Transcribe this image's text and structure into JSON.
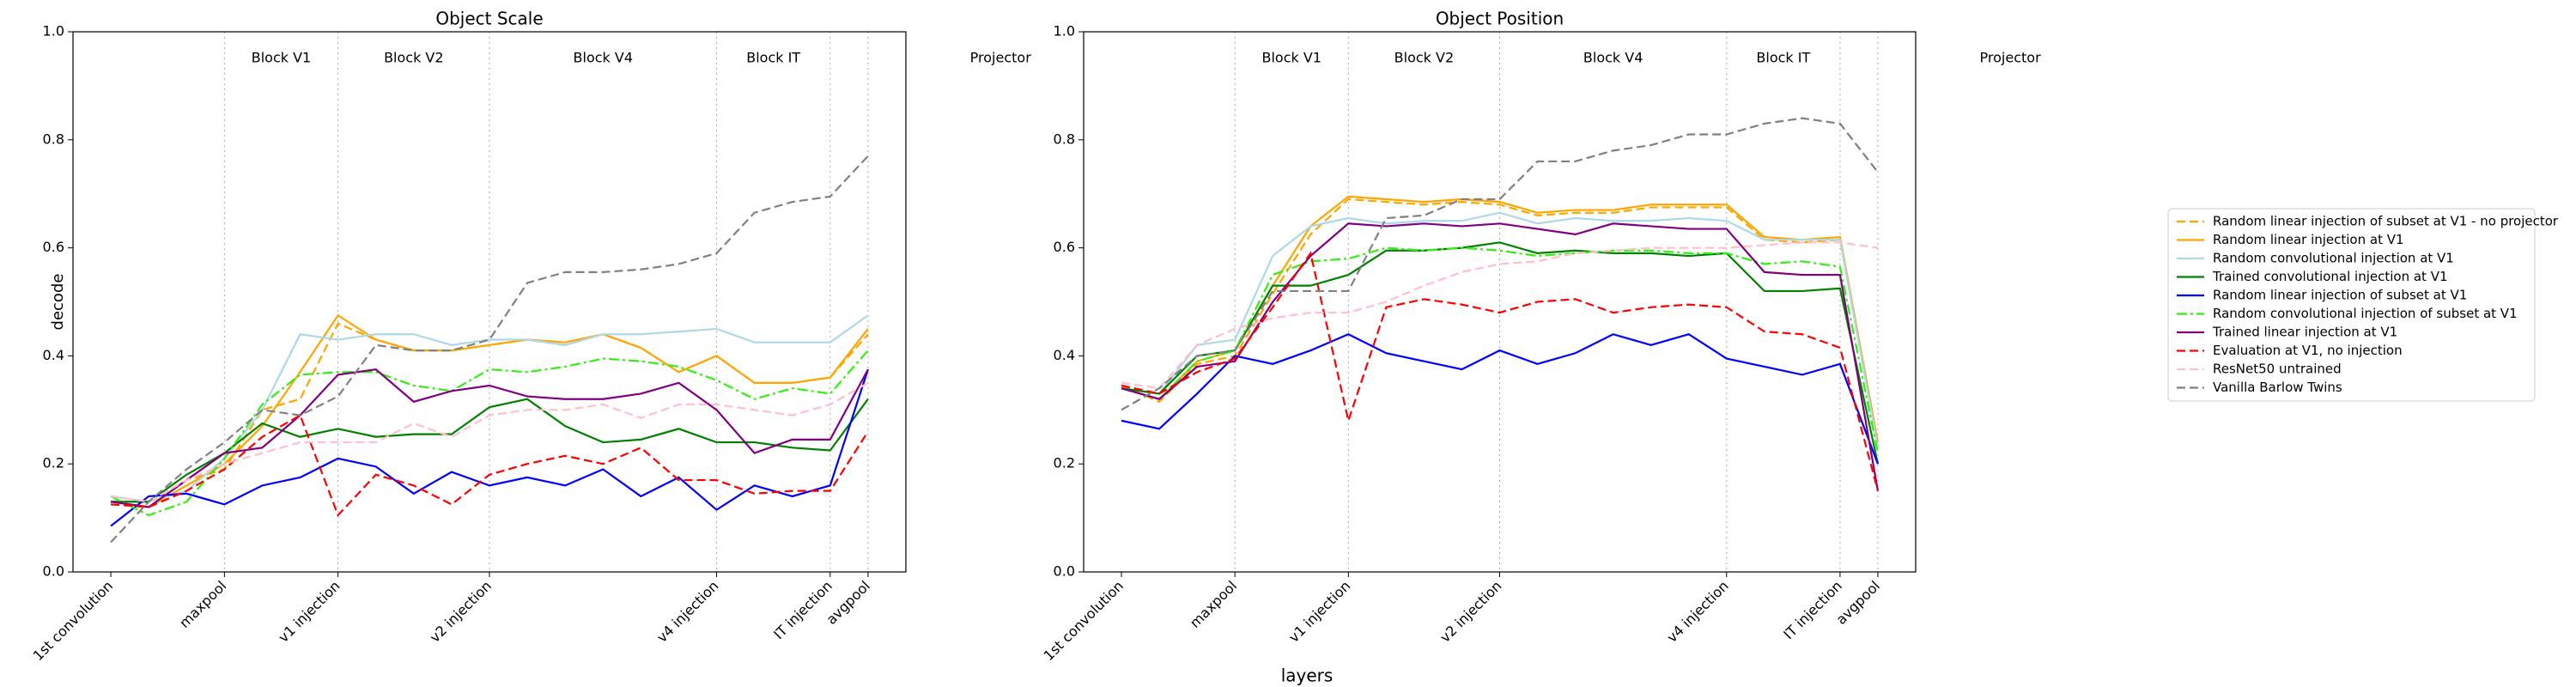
{
  "xlabel": "layers",
  "legend_loc": "center right",
  "chart_data": [
    {
      "type": "line",
      "title": "Object Scale",
      "ylabel": "decode",
      "categories": [
        "1st convolution",
        null,
        null,
        "maxpool",
        null,
        null,
        "v1 injection",
        null,
        null,
        null,
        "v2 injection",
        null,
        null,
        null,
        null,
        null,
        "v4 injection",
        null,
        null,
        "IT injection",
        "avgpool"
      ],
      "blocks": [
        "Block V1",
        "Block V2",
        "Block V4",
        "Block IT",
        "Projector"
      ],
      "ylim": [
        0,
        1
      ],
      "yticks": [
        {
          "value": 0,
          "label": "0.0"
        },
        0.2,
        0.4,
        0.6,
        0.8,
        {
          "value": 1,
          "label": "1.0"
        }
      ],
      "grid": false,
      "block_lines": true,
      "series": [
        {
          "name": "Random linear injection of subset at V1 - no projector",
          "color": "#ffa500",
          "dash": "dashed",
          "values": [
            0.13,
            0.13,
            0.17,
            0.19,
            0.3,
            0.32,
            0.46,
            0.43,
            0.41,
            0.41,
            0.42,
            0.43,
            0.42,
            0.44,
            0.415,
            0.37,
            0.4,
            0.35,
            0.35,
            0.36,
            0.44
          ]
        },
        {
          "name": "Random linear injection at V1",
          "color": "#ffa500",
          "dash": "solid",
          "values": [
            0.13,
            0.12,
            0.16,
            0.2,
            0.27,
            0.37,
            0.475,
            0.43,
            0.41,
            0.41,
            0.42,
            0.43,
            0.425,
            0.44,
            0.415,
            0.37,
            0.4,
            0.35,
            0.35,
            0.36,
            0.45
          ]
        },
        {
          "name": "Random convolutional injection at V1",
          "color": "#add8e6",
          "dash": "solid",
          "values": [
            0.14,
            0.13,
            0.15,
            0.21,
            0.3,
            0.44,
            0.43,
            0.44,
            0.44,
            0.42,
            0.43,
            0.43,
            0.42,
            0.44,
            0.44,
            0.445,
            0.45,
            0.425,
            0.425,
            0.425,
            0.475
          ]
        },
        {
          "name": "Trained convolutional injection at V1",
          "color": "#008000",
          "dash": "solid",
          "values": [
            0.13,
            0.13,
            0.18,
            0.22,
            0.275,
            0.25,
            0.265,
            0.25,
            0.255,
            0.255,
            0.305,
            0.32,
            0.27,
            0.24,
            0.245,
            0.265,
            0.24,
            0.24,
            0.23,
            0.225,
            0.32
          ]
        },
        {
          "name": "Random linear injection of subset at V1",
          "color": "#0000ff",
          "dash": "solid",
          "values": [
            0.085,
            0.14,
            0.145,
            0.125,
            0.16,
            0.175,
            0.21,
            0.195,
            0.145,
            0.185,
            0.16,
            0.175,
            0.16,
            0.19,
            0.14,
            0.175,
            0.115,
            0.16,
            0.14,
            0.16,
            0.375
          ]
        },
        {
          "name": "Random convolutional injection of subset at V1",
          "color": "#33ee11",
          "dash": "dashdot",
          "values": [
            0.14,
            0.105,
            0.13,
            0.21,
            0.31,
            0.365,
            0.37,
            0.37,
            0.345,
            0.335,
            0.375,
            0.37,
            0.38,
            0.395,
            0.39,
            0.38,
            0.355,
            0.32,
            0.34,
            0.33,
            0.41
          ]
        },
        {
          "name": "Trained linear injection at V1",
          "color": "#800080",
          "dash": "solid",
          "values": [
            0.13,
            0.12,
            0.17,
            0.22,
            0.23,
            0.29,
            0.365,
            0.375,
            0.315,
            0.335,
            0.345,
            0.325,
            0.32,
            0.32,
            0.33,
            0.35,
            0.3,
            0.22,
            0.245,
            0.245,
            0.375
          ]
        },
        {
          "name": "Evaluation at V1, no injection",
          "color": "#ff0000",
          "dash": "dashed",
          "values": [
            0.125,
            0.12,
            0.15,
            0.19,
            0.25,
            0.29,
            0.105,
            0.18,
            0.16,
            0.125,
            0.18,
            0.2,
            0.215,
            0.2,
            0.23,
            0.17,
            0.17,
            0.145,
            0.15,
            0.15,
            0.26
          ]
        },
        {
          "name": "ResNet50 untrained",
          "color": "#ffc0cb",
          "dash": "dashed",
          "values": [
            0.14,
            0.13,
            0.17,
            0.2,
            0.22,
            0.24,
            0.24,
            0.24,
            0.275,
            0.25,
            0.29,
            0.3,
            0.3,
            0.31,
            0.285,
            0.31,
            0.31,
            0.3,
            0.29,
            0.31,
            0.35
          ]
        },
        {
          "name": "Vanilla Barlow Twins",
          "color": "#808080",
          "dash": "dashed",
          "values": [
            0.055,
            0.13,
            0.19,
            0.24,
            0.3,
            0.29,
            0.325,
            0.42,
            0.41,
            0.41,
            0.43,
            0.535,
            0.555,
            0.555,
            0.56,
            0.57,
            0.59,
            0.665,
            0.685,
            0.695,
            0.77
          ]
        }
      ]
    },
    {
      "type": "line",
      "title": "Object Position",
      "categories": [
        "1st convolution",
        null,
        null,
        "maxpool",
        null,
        null,
        "v1 injection",
        null,
        null,
        null,
        "v2 injection",
        null,
        null,
        null,
        null,
        null,
        "v4 injection",
        null,
        null,
        "IT injection",
        "avgpool"
      ],
      "blocks": [
        "Block V1",
        "Block V2",
        "Block V4",
        "Block IT",
        "Projector"
      ],
      "ylim": [
        0,
        1
      ],
      "yticks": [
        {
          "value": 0,
          "label": "0.0"
        },
        0.2,
        0.4,
        0.6,
        0.8,
        {
          "value": 1,
          "label": "1.0"
        }
      ],
      "grid": false,
      "block_lines": true,
      "series": [
        {
          "name": "Random linear injection of subset at V1 - no projector",
          "color": "#ffa500",
          "dash": "dashed",
          "values": [
            0.345,
            0.315,
            0.385,
            0.4,
            0.515,
            0.625,
            0.69,
            0.685,
            0.68,
            0.685,
            0.68,
            0.66,
            0.665,
            0.665,
            0.675,
            0.675,
            0.675,
            0.615,
            0.61,
            0.615,
            0.235
          ]
        },
        {
          "name": "Random linear injection at V1",
          "color": "#ffa500",
          "dash": "solid",
          "values": [
            0.34,
            0.32,
            0.39,
            0.41,
            0.53,
            0.64,
            0.695,
            0.69,
            0.685,
            0.69,
            0.685,
            0.665,
            0.67,
            0.67,
            0.68,
            0.68,
            0.68,
            0.62,
            0.615,
            0.62,
            0.24
          ]
        },
        {
          "name": "Random convolutional injection at V1",
          "color": "#add8e6",
          "dash": "solid",
          "values": [
            0.34,
            0.33,
            0.42,
            0.43,
            0.585,
            0.64,
            0.655,
            0.645,
            0.65,
            0.65,
            0.665,
            0.645,
            0.655,
            0.65,
            0.65,
            0.655,
            0.65,
            0.615,
            0.615,
            0.615,
            0.23
          ]
        },
        {
          "name": "Trained convolutional injection at V1",
          "color": "#008000",
          "dash": "solid",
          "values": [
            0.34,
            0.33,
            0.4,
            0.41,
            0.53,
            0.53,
            0.55,
            0.595,
            0.595,
            0.6,
            0.61,
            0.59,
            0.595,
            0.59,
            0.59,
            0.585,
            0.59,
            0.52,
            0.52,
            0.525,
            0.2
          ]
        },
        {
          "name": "Random linear injection of subset at V1",
          "color": "#0000ff",
          "dash": "solid",
          "values": [
            0.28,
            0.265,
            0.33,
            0.4,
            0.385,
            0.41,
            0.44,
            0.405,
            0.39,
            0.375,
            0.41,
            0.385,
            0.405,
            0.44,
            0.42,
            0.44,
            0.395,
            0.38,
            0.365,
            0.385,
            0.2
          ]
        },
        {
          "name": "Random convolutional injection of subset at V1",
          "color": "#33ee11",
          "dash": "dashdot",
          "values": [
            0.34,
            0.32,
            0.39,
            0.41,
            0.55,
            0.575,
            0.58,
            0.6,
            0.595,
            0.6,
            0.595,
            0.585,
            0.59,
            0.595,
            0.595,
            0.59,
            0.59,
            0.57,
            0.575,
            0.565,
            0.22
          ]
        },
        {
          "name": "Trained linear injection at V1",
          "color": "#800080",
          "dash": "solid",
          "values": [
            0.34,
            0.32,
            0.38,
            0.39,
            0.5,
            0.585,
            0.645,
            0.64,
            0.645,
            0.64,
            0.645,
            0.635,
            0.625,
            0.645,
            0.64,
            0.635,
            0.635,
            0.555,
            0.55,
            0.55,
            0.15
          ]
        },
        {
          "name": "Evaluation at V1, no injection",
          "color": "#ff0000",
          "dash": "dashed",
          "values": [
            0.345,
            0.33,
            0.37,
            0.395,
            0.49,
            0.59,
            0.28,
            0.49,
            0.505,
            0.495,
            0.48,
            0.5,
            0.505,
            0.48,
            0.49,
            0.495,
            0.49,
            0.445,
            0.44,
            0.415,
            0.15
          ]
        },
        {
          "name": "ResNet50 untrained",
          "color": "#ffc0cb",
          "dash": "dashed",
          "values": [
            0.35,
            0.34,
            0.42,
            0.45,
            0.47,
            0.48,
            0.48,
            0.5,
            0.53,
            0.555,
            0.57,
            0.575,
            0.59,
            0.595,
            0.6,
            0.6,
            0.6,
            0.605,
            0.61,
            0.61,
            0.6
          ]
        },
        {
          "name": "Vanilla Barlow Twins",
          "color": "#808080",
          "dash": "dashed",
          "values": [
            0.3,
            0.34,
            0.4,
            0.41,
            0.52,
            0.52,
            0.52,
            0.655,
            0.66,
            0.69,
            0.69,
            0.76,
            0.76,
            0.78,
            0.79,
            0.81,
            0.81,
            0.83,
            0.84,
            0.83,
            0.74
          ]
        }
      ]
    }
  ]
}
